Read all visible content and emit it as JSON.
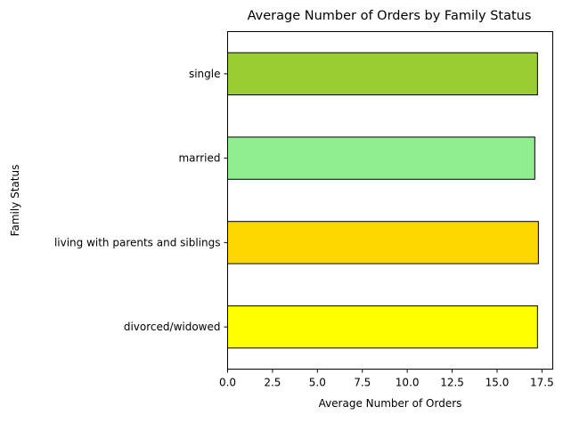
{
  "chart_data": {
    "type": "bar",
    "orientation": "horizontal",
    "title": "Average Number of Orders by Family Status",
    "xlabel": "Average Number of Orders",
    "ylabel": "Family Status",
    "categories": [
      "divorced/widowed",
      "living with parents and siblings",
      "married",
      "single"
    ],
    "values": [
      17.25,
      17.3,
      17.1,
      17.25
    ],
    "colors": [
      "#ffff00",
      "#ffd700",
      "#90ee90",
      "#9acd32"
    ],
    "edge_color": "#000000",
    "xlim": [
      0,
      18.1
    ],
    "xticks": [
      0.0,
      2.5,
      5.0,
      7.5,
      10.0,
      12.5,
      15.0,
      17.5
    ],
    "xtick_labels": [
      "0.0",
      "2.5",
      "5.0",
      "7.5",
      "10.0",
      "12.5",
      "15.0",
      "17.5"
    ],
    "grid": false,
    "legend": "none"
  }
}
